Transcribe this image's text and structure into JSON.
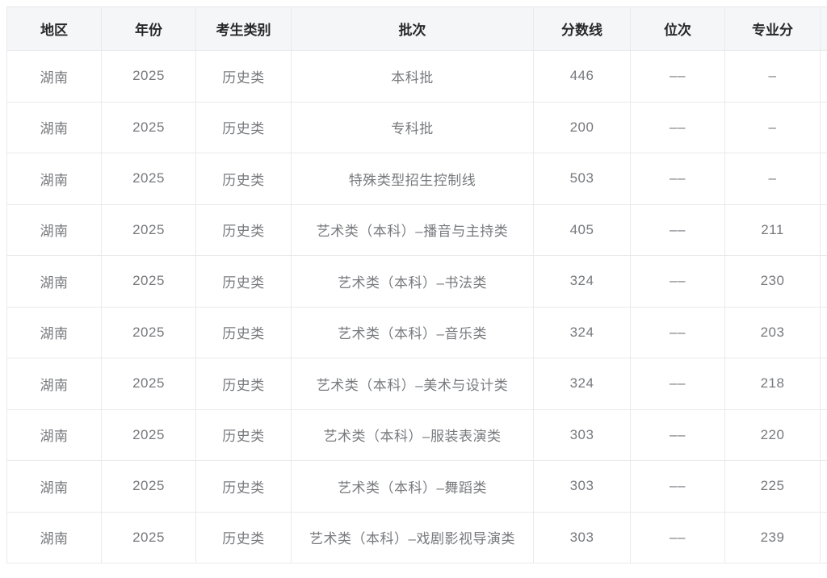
{
  "table": {
    "columns": [
      {
        "label": "地区"
      },
      {
        "label": "年份"
      },
      {
        "label": "考生类别"
      },
      {
        "label": "批次"
      },
      {
        "label": "分数线"
      },
      {
        "label": "位次"
      },
      {
        "label": "专业分"
      },
      {
        "label": ""
      }
    ],
    "rows": [
      [
        "湖南",
        "2025",
        "历史类",
        "本科批",
        "446",
        "––",
        "–",
        ""
      ],
      [
        "湖南",
        "2025",
        "历史类",
        "专科批",
        "200",
        "––",
        "–",
        ""
      ],
      [
        "湖南",
        "2025",
        "历史类",
        "特殊类型招生控制线",
        "503",
        "––",
        "–",
        ""
      ],
      [
        "湖南",
        "2025",
        "历史类",
        "艺术类（本科）–播音与主持类",
        "405",
        "––",
        "211",
        ""
      ],
      [
        "湖南",
        "2025",
        "历史类",
        "艺术类（本科）–书法类",
        "324",
        "––",
        "230",
        ""
      ],
      [
        "湖南",
        "2025",
        "历史类",
        "艺术类（本科）–音乐类",
        "324",
        "––",
        "203",
        ""
      ],
      [
        "湖南",
        "2025",
        "历史类",
        "艺术类（本科）–美术与设计类",
        "324",
        "––",
        "218",
        ""
      ],
      [
        "湖南",
        "2025",
        "历史类",
        "艺术类（本科）–服装表演类",
        "303",
        "––",
        "220",
        ""
      ],
      [
        "湖南",
        "2025",
        "历史类",
        "艺术类（本科）–舞蹈类",
        "303",
        "––",
        "225",
        ""
      ],
      [
        "湖南",
        "2025",
        "历史类",
        "艺术类（本科）–戏剧影视导演类",
        "303",
        "––",
        "239",
        ""
      ]
    ]
  },
  "colors": {
    "header_bg": "#f5f6f7",
    "header_text": "#26282b",
    "body_text": "#77797d",
    "border": "#e9eaec",
    "page_bg": "#ffffff"
  }
}
